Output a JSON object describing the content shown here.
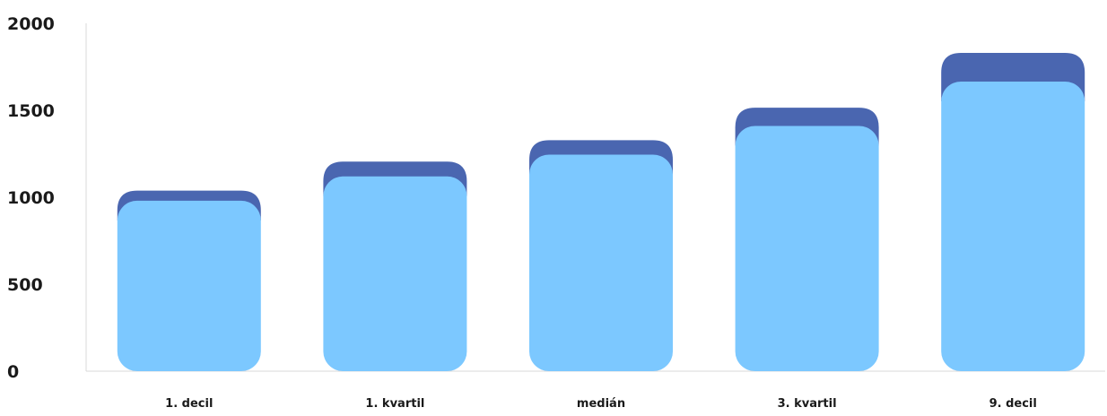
{
  "chart_data": {
    "type": "bar",
    "stacked": true,
    "categories": [
      "1. decil",
      "1. kvartil",
      "medián",
      "3. kvartil",
      "9. decil"
    ],
    "series": [
      {
        "color": "#7cc8ff",
        "values": [
          980,
          1120,
          1245,
          1410,
          1665
        ]
      },
      {
        "color": "#4a66b0",
        "values": [
          58,
          85,
          83,
          105,
          165
        ]
      }
    ],
    "yticks": [
      "0",
      "500",
      "1000",
      "1500",
      "2000"
    ],
    "ylim": [
      0,
      2000
    ],
    "grid": false,
    "legend": "none"
  }
}
